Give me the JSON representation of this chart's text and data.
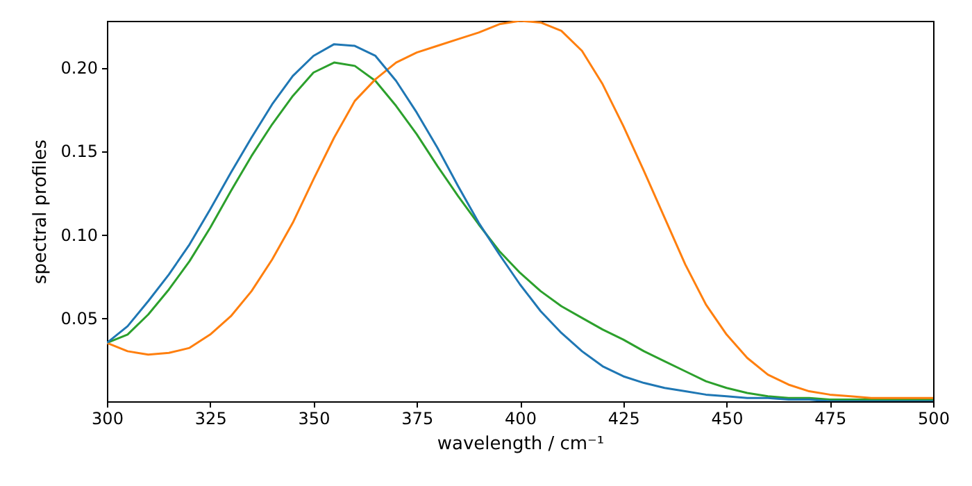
{
  "chart_data": {
    "type": "line",
    "xlabel": "wavelength / cm⁻¹",
    "ylabel": "spectral profiles",
    "x": [
      300,
      305,
      310,
      315,
      320,
      325,
      330,
      335,
      340,
      345,
      350,
      355,
      360,
      365,
      370,
      375,
      380,
      385,
      390,
      395,
      400,
      405,
      410,
      415,
      420,
      425,
      430,
      435,
      440,
      445,
      450,
      455,
      460,
      465,
      470,
      475,
      480,
      485,
      490,
      495,
      500
    ],
    "series": [
      {
        "color": "#1f77b4",
        "values": [
          0.035,
          0.045,
          0.06,
          0.076,
          0.094,
          0.115,
          0.137,
          0.158,
          0.178,
          0.195,
          0.207,
          0.214,
          0.213,
          0.207,
          0.192,
          0.173,
          0.152,
          0.129,
          0.107,
          0.088,
          0.07,
          0.054,
          0.041,
          0.03,
          0.021,
          0.015,
          0.011,
          0.008,
          0.006,
          0.004,
          0.003,
          0.002,
          0.002,
          0.001,
          0.001,
          0,
          0,
          0,
          0,
          0,
          0
        ]
      },
      {
        "color": "#ff7f0e",
        "values": [
          0.035,
          0.03,
          0.028,
          0.029,
          0.032,
          0.04,
          0.051,
          0.066,
          0.085,
          0.107,
          0.133,
          0.158,
          0.18,
          0.193,
          0.203,
          0.209,
          0.213,
          0.217,
          0.221,
          0.226,
          0.228,
          0.227,
          0.222,
          0.21,
          0.19,
          0.165,
          0.138,
          0.11,
          0.082,
          0.058,
          0.04,
          0.026,
          0.016,
          0.01,
          0.006,
          0.004,
          0.003,
          0.002,
          0.002,
          0.002,
          0.002
        ]
      },
      {
        "color": "#2ca02c",
        "values": [
          0.035,
          0.04,
          0.052,
          0.067,
          0.084,
          0.104,
          0.126,
          0.147,
          0.166,
          0.183,
          0.197,
          0.203,
          0.201,
          0.192,
          0.177,
          0.16,
          0.141,
          0.123,
          0.106,
          0.09,
          0.077,
          0.066,
          0.057,
          0.05,
          0.043,
          0.037,
          0.03,
          0.024,
          0.018,
          0.012,
          0.008,
          0.005,
          0.003,
          0.002,
          0.002,
          0.001,
          0.001,
          0.001,
          0.001,
          0.001,
          0.001
        ]
      }
    ],
    "xlim": [
      300,
      500
    ],
    "xticks": [
      300,
      325,
      350,
      375,
      400,
      425,
      450,
      475,
      500
    ],
    "ylim": [
      0,
      0.228
    ],
    "yticks": [
      {
        "value": 0.05,
        "label": "0.05"
      },
      {
        "value": 0.1,
        "label": "0.10"
      },
      {
        "value": 0.15,
        "label": "0.15"
      },
      {
        "value": 0.2,
        "label": "0.20"
      }
    ],
    "grid": false
  }
}
